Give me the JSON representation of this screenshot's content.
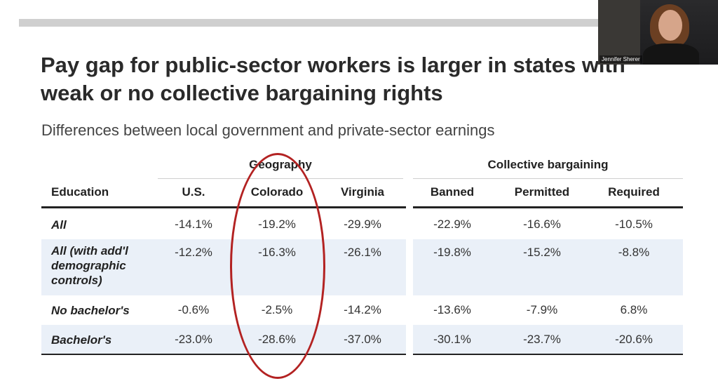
{
  "slide": {
    "title_line1": "Pay gap for public-sector workers is larger in states with",
    "title_line2": "weak or no collective bargaining rights",
    "subtitle": "Differences between local government and private-sector earnings"
  },
  "table": {
    "group_headers": [
      "Geography",
      "Collective bargaining"
    ],
    "row_header": "Education",
    "columns": [
      "U.S.",
      "Colorado",
      "Virginia",
      "Banned",
      "Permitted",
      "Required"
    ],
    "rows": [
      {
        "label": "All",
        "values": [
          "-14.1%",
          "-19.2%",
          "-29.9%",
          "-22.9%",
          "-16.6%",
          "-10.5%"
        ]
      },
      {
        "label": "All (with add'l\ndemographic\ncontrols)",
        "values": [
          "-12.2%",
          "-16.3%",
          "-26.1%",
          "-19.8%",
          "-15.2%",
          "-8.8%"
        ]
      },
      {
        "label": "No bachelor's",
        "values": [
          "-0.6%",
          "-2.5%",
          "-14.2%",
          "-13.6%",
          "-7.9%",
          "6.8%"
        ]
      },
      {
        "label": "Bachelor's",
        "values": [
          "-23.0%",
          "-28.6%",
          "-37.0%",
          "-30.1%",
          "-23.7%",
          "-20.6%"
        ]
      }
    ]
  },
  "annotation": {
    "highlight_column": "Colorado",
    "color": "#b32222"
  },
  "webcam": {
    "participant_name": "Jennifer Sherer"
  }
}
